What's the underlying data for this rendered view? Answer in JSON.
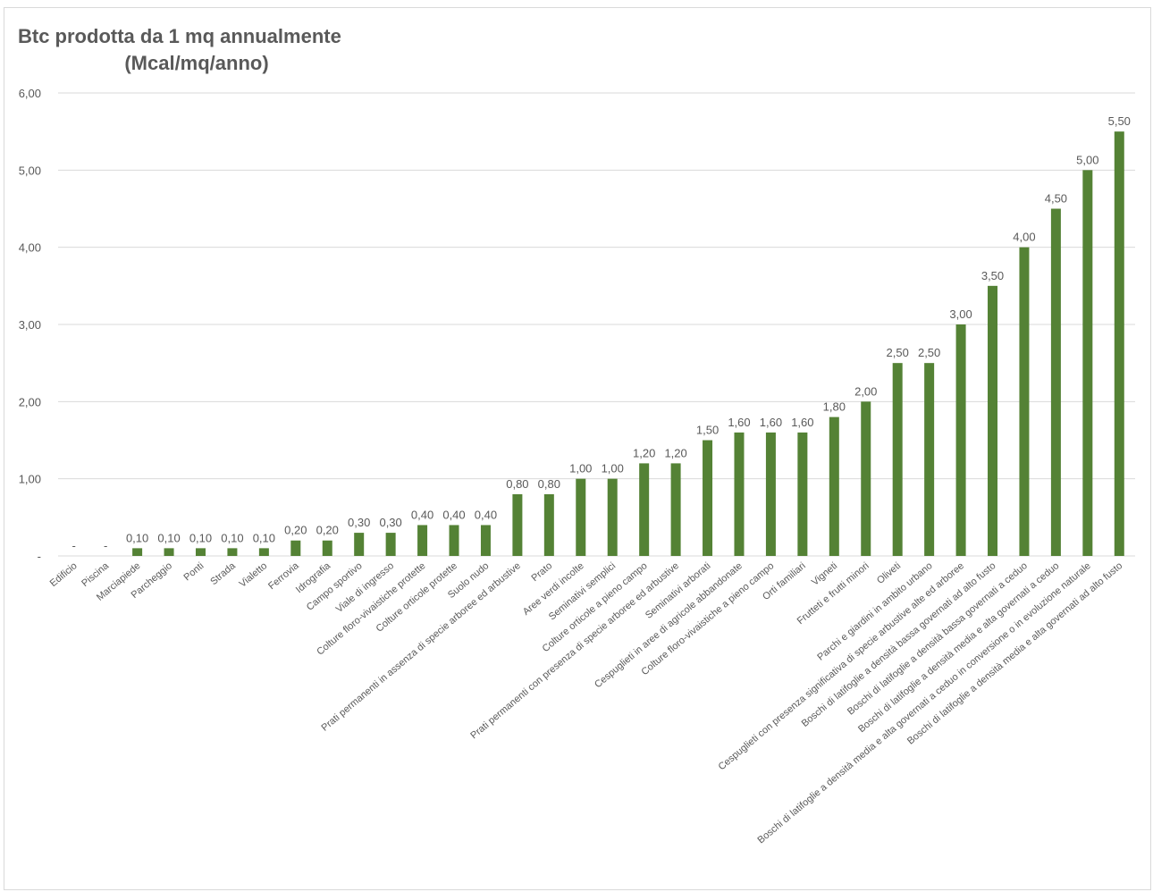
{
  "chart_data": {
    "type": "bar",
    "title": "Btc prodotta da 1 mq annualmente",
    "subtitle": "(Mcal/mq/anno)",
    "xlabel": "",
    "ylabel": "",
    "ylim": [
      0,
      6
    ],
    "yticks": [
      0,
      1,
      2,
      3,
      4,
      5,
      6
    ],
    "ytick_labels": [
      "-",
      "1,00",
      "2,00",
      "3,00",
      "4,00",
      "5,00",
      "6,00"
    ],
    "grid": true,
    "legend": "none",
    "bar_color": "#548235",
    "categories": [
      "Edificio",
      "Piscina",
      "Marciapiede",
      "Parcheggio",
      "Ponti",
      "Strada",
      "Vialetto",
      "Ferrovia",
      "Idrografia",
      "Campo sportivo",
      "Viale di ingresso",
      "Colture floro-vivaistiche protette",
      "Colture orticole protette",
      "Suolo nudo",
      "Prati permanenti in assenza di specie arboree ed arbustive",
      "Prato",
      "Aree verdi incolte",
      "Seminativi semplici",
      "Colture orticole a pieno campo",
      "Prati permanenti con presenza di specie arboree ed arbustive",
      "Seminativi arborati",
      "Cespuglieti in aree di agricole abbandonate",
      "Colture floro-vivaistiche a pieno campo",
      "Orti familiari",
      "Vigneti",
      "Frutteti e frutti minori",
      "Oliveti",
      "Parchi e giardini in ambito urbano",
      "Cespuglieti con presenza significativa di specie arbustive alte ed arboree",
      "Boschi di latifoglie a densità bassa governati ad alto fusto",
      "Boschi di latifoglie a densità bassa governati a ceduo",
      "Boschi di latifoglie a densità media e alta governati a ceduo",
      "Boschi di latifoglie a densità media e alta governati a ceduo in conversione o in evoluzione naturale",
      "Boschi di latifoglie a densità media e alta governati ad alto fusto"
    ],
    "values": [
      0,
      0,
      0.1,
      0.1,
      0.1,
      0.1,
      0.1,
      0.2,
      0.2,
      0.3,
      0.3,
      0.4,
      0.4,
      0.4,
      0.8,
      0.8,
      1.0,
      1.0,
      1.2,
      1.2,
      1.5,
      1.6,
      1.6,
      1.6,
      1.8,
      2.0,
      2.5,
      2.5,
      3.0,
      3.5,
      4.0,
      4.5,
      5.0,
      5.5
    ],
    "data_labels": [
      "-",
      "-",
      "0,10",
      "0,10",
      "0,10",
      "0,10",
      "0,10",
      "0,20",
      "0,20",
      "0,30",
      "0,30",
      "0,40",
      "0,40",
      "0,40",
      "0,80",
      "0,80",
      "1,00",
      "1,00",
      "1,20",
      "1,20",
      "1,50",
      "1,60",
      "1,60",
      "1,60",
      "1,80",
      "2,00",
      "2,50",
      "2,50",
      "3,00",
      "3,50",
      "4,00",
      "4,50",
      "5,00",
      "5,50"
    ]
  }
}
